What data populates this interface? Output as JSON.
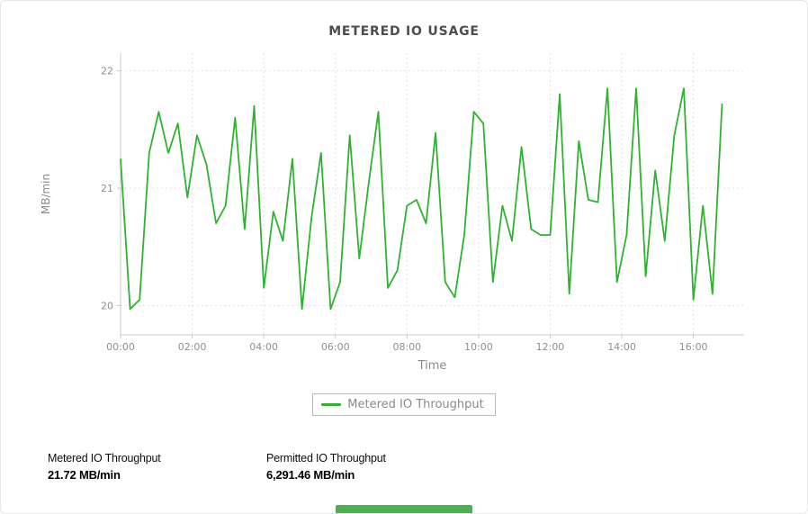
{
  "chart_data": {
    "type": "line",
    "title": "METERED IO USAGE",
    "xlabel": "Time",
    "ylabel": "MB/min",
    "ylim": [
      19.75,
      22.15
    ],
    "xlim": [
      0,
      1045
    ],
    "y_ticks": [
      20,
      21,
      22
    ],
    "x_ticks": [
      {
        "m": 0,
        "label": "00:00"
      },
      {
        "m": 120,
        "label": "02:00"
      },
      {
        "m": 240,
        "label": "04:00"
      },
      {
        "m": 360,
        "label": "06:00"
      },
      {
        "m": 480,
        "label": "08:00"
      },
      {
        "m": 600,
        "label": "10:00"
      },
      {
        "m": 720,
        "label": "12:00"
      },
      {
        "m": 840,
        "label": "14:00"
      },
      {
        "m": 960,
        "label": "16:00"
      }
    ],
    "grid": "dotted",
    "legend_position": "bottom",
    "x_minutes": [
      0,
      16,
      32,
      48,
      64,
      80,
      96,
      112,
      128,
      144,
      160,
      176,
      192,
      208,
      224,
      240,
      256,
      272,
      288,
      304,
      320,
      336,
      352,
      368,
      384,
      400,
      416,
      432,
      448,
      464,
      480,
      496,
      512,
      528,
      544,
      560,
      576,
      592,
      608,
      624,
      640,
      656,
      672,
      688,
      704,
      720,
      736,
      752,
      768,
      784,
      800,
      816,
      832,
      848,
      864,
      880,
      896,
      912,
      928,
      944,
      960,
      976,
      992,
      1008
    ],
    "series": [
      {
        "name": "Metered IO Throughput",
        "color": "#2db32d",
        "values": [
          21.25,
          19.97,
          20.05,
          21.3,
          21.65,
          21.3,
          21.55,
          20.92,
          21.45,
          21.2,
          20.7,
          20.85,
          21.6,
          20.65,
          21.7,
          20.15,
          20.8,
          20.55,
          21.25,
          19.97,
          20.75,
          21.3,
          19.97,
          20.2,
          21.45,
          20.4,
          21.05,
          21.65,
          20.15,
          20.3,
          20.85,
          20.9,
          20.7,
          21.47,
          20.2,
          20.07,
          20.6,
          21.65,
          21.55,
          20.2,
          20.85,
          20.55,
          21.35,
          20.65,
          20.6,
          20.6,
          21.8,
          20.1,
          21.4,
          20.9,
          20.88,
          21.85,
          20.2,
          20.6,
          21.85,
          20.25,
          21.15,
          20.55,
          21.45,
          21.85,
          20.05,
          20.85,
          20.1,
          21.72
        ]
      }
    ]
  },
  "stats": [
    {
      "label": "Metered IO Throughput",
      "value": "21.72 MB/min"
    },
    {
      "label": "Permitted IO Throughput",
      "value": "6,291.46 MB/min"
    }
  ],
  "colors": {
    "line_green": "#2db32d",
    "bottom_bar_green": "#4caf50",
    "grid": "#e1e1e1",
    "axis": "#c9c9c9",
    "tick_text": "#8f8f8f"
  }
}
